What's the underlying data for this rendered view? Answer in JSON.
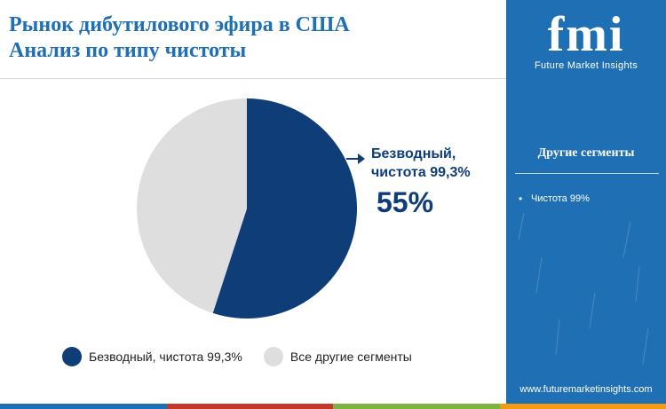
{
  "header": {
    "title_line1": "Рынок дибутилового эфира в США",
    "title_line2": "Анализ по типу чистоты"
  },
  "chart_data": {
    "type": "pie",
    "categories": [
      "Безводный, чистота 99,3%",
      "Все другие сегменты"
    ],
    "values": [
      55,
      45
    ],
    "colors": [
      "#0f3d78",
      "#dedede"
    ],
    "callout": {
      "label_line1": "Безводный,",
      "label_line2": "чистота 99,3%",
      "value": "55%"
    },
    "legend": [
      "Безводный, чистота 99,3%",
      "Все другие сегменты"
    ],
    "legend_placement": "bottom"
  },
  "sidebar": {
    "logo_text": "fmi",
    "logo_subtitle": "Future Market Insights",
    "segments_title": "Другие сегменты",
    "segments": [
      "Чистота 99%"
    ],
    "website": "www.futuremarketinsights.com"
  },
  "colors": {
    "accent": "#1f6fb4",
    "primary": "#0f3d78",
    "secondary": "#dedede",
    "bottom_bar": [
      "#1f6fb4",
      "#c0392b",
      "#7cb342",
      "#f39c12"
    ]
  }
}
